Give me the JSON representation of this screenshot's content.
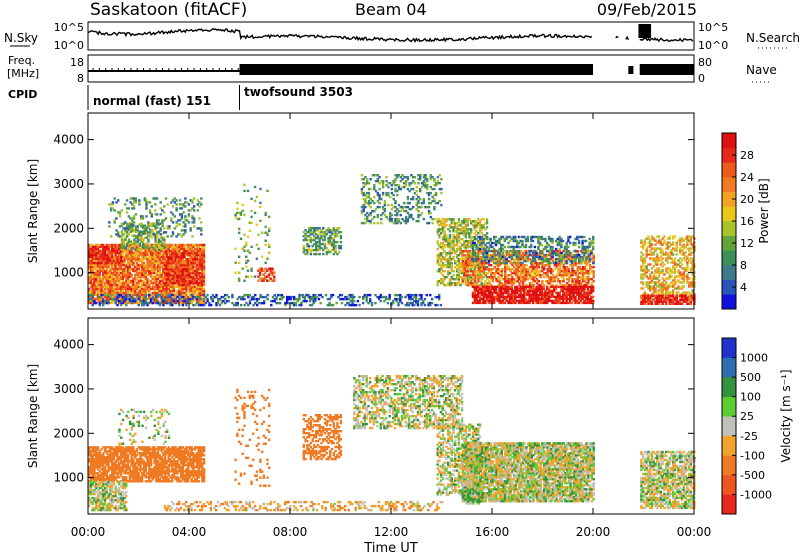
{
  "header": {
    "station": "Saskatoon (fitACF)",
    "beam": "Beam 04",
    "date": "09/Feb/2015"
  },
  "summary_panels": {
    "nsky": {
      "label": "N.Sky",
      "left_ticks": [
        "10^5",
        "10^0"
      ],
      "right_label": "N.Search",
      "right_ticks": [
        "10^5",
        "10^0"
      ]
    },
    "freq": {
      "label_line1": "Freq.",
      "label_line2": "[MHz]",
      "left_ticks": [
        "18",
        "8"
      ],
      "right_label": "Nave",
      "right_ticks": [
        "80",
        "0"
      ]
    },
    "cpid": {
      "label": "CPID",
      "segments": [
        {
          "name": "normal (fast) 151",
          "start_hour": 0
        },
        {
          "name": "twofsound 3503",
          "start_hour": 6
        }
      ]
    }
  },
  "axes": {
    "x_ticks": [
      "00:00",
      "04:00",
      "08:00",
      "12:00",
      "16:00",
      "20:00",
      "00:00"
    ],
    "x_label": "Time UT",
    "y_ticks": [
      "1000",
      "2000",
      "3000",
      "4000"
    ],
    "y_label": "Slant Range [km]"
  },
  "colorbars": {
    "power": {
      "label": "Power [dB]",
      "ticks": [
        "4",
        "8",
        "12",
        "16",
        "20",
        "24",
        "28"
      ],
      "colors": [
        "#1010e0",
        "#2a55b8",
        "#3e7a8a",
        "#3d8f58",
        "#62a33a",
        "#a8c22c",
        "#e8c81a",
        "#f3a323",
        "#f27a22",
        "#ee5a1e",
        "#e8281a",
        "#e01010"
      ]
    },
    "velocity": {
      "label": "Velocity [m s⁻¹]",
      "ticks": [
        "1000",
        "500",
        "100",
        "25",
        "-25",
        "-100",
        "-500",
        "-1000"
      ],
      "colors": [
        "#2233cc",
        "#2c6fae",
        "#34913e",
        "#5ccc33",
        "#c0c0ba",
        "#f2a32b",
        "#f07a22",
        "#ef5520",
        "#e8281a"
      ]
    }
  },
  "chart_data": [
    {
      "type": "heatmap",
      "title": "Power [dB]",
      "xlabel": "Time UT",
      "ylabel": "Slant Range [km]",
      "xlim_hours": [
        0,
        24
      ],
      "ylim_km": [
        180,
        4600
      ],
      "color_range": [
        0,
        30
      ],
      "regions": [
        {
          "t": [
            0.0,
            4.6
          ],
          "r": [
            300,
            1650
          ],
          "v": 22,
          "d": 0.85
        },
        {
          "t": [
            0.0,
            1.3
          ],
          "r": [
            1200,
            1600
          ],
          "v": 27,
          "d": 0.7
        },
        {
          "t": [
            1.3,
            3.0
          ],
          "r": [
            1500,
            2100
          ],
          "v": 12,
          "d": 0.55
        },
        {
          "t": [
            0.8,
            4.5
          ],
          "r": [
            1800,
            2700
          ],
          "v": 9,
          "d": 0.22
        },
        {
          "t": [
            3.0,
            4.6
          ],
          "r": [
            700,
            1500
          ],
          "v": 26,
          "d": 0.65
        },
        {
          "t": [
            5.8,
            7.2
          ],
          "r": [
            800,
            3000
          ],
          "v": 12,
          "d": 0.12
        },
        {
          "t": [
            6.7,
            7.4
          ],
          "r": [
            800,
            1100
          ],
          "v": 25,
          "d": 0.5
        },
        {
          "t": [
            8.5,
            10.0
          ],
          "r": [
            1400,
            2000
          ],
          "v": 10,
          "d": 0.55
        },
        {
          "t": [
            10.8,
            14.0
          ],
          "r": [
            2100,
            3200
          ],
          "v": 9,
          "d": 0.28
        },
        {
          "t": [
            13.8,
            15.8
          ],
          "r": [
            700,
            2200
          ],
          "v": 14,
          "d": 0.6
        },
        {
          "t": [
            14.8,
            20.0
          ],
          "r": [
            700,
            1500
          ],
          "v": 22,
          "d": 0.6
        },
        {
          "t": [
            15.2,
            20.0
          ],
          "r": [
            1200,
            1800
          ],
          "v": 8,
          "d": 0.45
        },
        {
          "t": [
            15.2,
            20.0
          ],
          "r": [
            300,
            700
          ],
          "v": 29,
          "d": 0.85
        },
        {
          "t": [
            21.8,
            24.0
          ],
          "r": [
            400,
            1800
          ],
          "v": 18,
          "d": 0.5
        },
        {
          "t": [
            21.8,
            24.0
          ],
          "r": [
            280,
            500
          ],
          "v": 28,
          "d": 0.8
        },
        {
          "t": [
            0.0,
            14.0
          ],
          "r": [
            250,
            500
          ],
          "v": 5,
          "d": 0.35
        }
      ]
    },
    {
      "type": "heatmap",
      "title": "Velocity [m s⁻¹]",
      "xlabel": "Time UT",
      "ylabel": "Slant Range [km]",
      "xlim_hours": [
        0,
        24
      ],
      "ylim_km": [
        180,
        4600
      ],
      "color_range": [
        -1000,
        1000
      ],
      "regions": [
        {
          "t": [
            0.0,
            4.6
          ],
          "r": [
            900,
            1700
          ],
          "v": -300,
          "d": 0.8
        },
        {
          "t": [
            0.0,
            1.5
          ],
          "r": [
            250,
            900
          ],
          "v": 0,
          "d": 0.7
        },
        {
          "t": [
            1.2,
            3.2
          ],
          "r": [
            1700,
            2600
          ],
          "v": 0,
          "d": 0.15
        },
        {
          "t": [
            5.8,
            7.2
          ],
          "r": [
            800,
            3000
          ],
          "v": -200,
          "d": 0.12
        },
        {
          "t": [
            8.5,
            10.0
          ],
          "r": [
            1400,
            2400
          ],
          "v": -400,
          "d": 0.5
        },
        {
          "t": [
            10.5,
            14.8
          ],
          "r": [
            2100,
            3300
          ],
          "v": 0,
          "d": 0.5
        },
        {
          "t": [
            13.8,
            15.5
          ],
          "r": [
            600,
            2200
          ],
          "v": 0,
          "d": 0.5
        },
        {
          "t": [
            14.8,
            20.0
          ],
          "r": [
            450,
            1800
          ],
          "v": 0,
          "d": 0.85
        },
        {
          "t": [
            14.8,
            15.6
          ],
          "r": [
            400,
            700
          ],
          "v": 80,
          "d": 0.6
        },
        {
          "t": [
            21.8,
            24.0
          ],
          "r": [
            300,
            1600
          ],
          "v": 0,
          "d": 0.7
        },
        {
          "t": [
            3.0,
            14.0
          ],
          "r": [
            250,
            450
          ],
          "v": -60,
          "d": 0.35
        }
      ]
    }
  ]
}
